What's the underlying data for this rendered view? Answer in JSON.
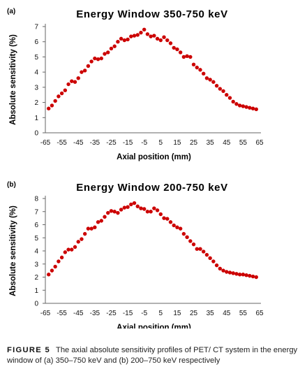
{
  "caption": {
    "label": "FIGURE 5",
    "text": "The axial absolute sensitivity profiles of PET/ CT system in the energy window of (a) 350–750 keV and (b) 200–750 keV respectively"
  },
  "chart_data": [
    {
      "type": "scatter",
      "panel": "(a)",
      "title": "Energy Window 350-750 keV",
      "xlabel": "Axial position (mm)",
      "ylabel": "Absolute sensitivity (%)",
      "xlim": [
        -65,
        65
      ],
      "ylim": [
        0,
        7
      ],
      "xticks": [
        -65,
        -55,
        -45,
        -35,
        -25,
        -15,
        -5,
        5,
        15,
        25,
        35,
        45,
        55,
        65
      ],
      "yticks": [
        0,
        1,
        2,
        3,
        4,
        5,
        6,
        7
      ],
      "grid": false,
      "marker_color": "#cc0000",
      "series": [
        {
          "x": [
            -63,
            -61,
            -59,
            -57,
            -55,
            -53,
            -51,
            -49,
            -47,
            -45,
            -43,
            -41,
            -39,
            -37,
            -35,
            -33,
            -31,
            -29,
            -27,
            -25,
            -23,
            -21,
            -19,
            -17,
            -15,
            -13,
            -11,
            -9,
            -7,
            -5,
            -3,
            -1,
            1,
            3,
            5,
            7,
            9,
            11,
            13,
            15,
            17,
            19,
            21,
            23,
            25,
            27,
            29,
            31,
            33,
            35,
            37,
            39,
            41,
            43,
            45,
            47,
            49,
            51,
            53,
            55,
            57,
            59,
            61,
            63
          ],
          "y": [
            1.6,
            1.8,
            2.1,
            2.4,
            2.6,
            2.8,
            3.2,
            3.4,
            3.35,
            3.6,
            4.0,
            4.1,
            4.4,
            4.7,
            4.9,
            4.85,
            4.9,
            5.2,
            5.3,
            5.55,
            5.7,
            6.0,
            6.2,
            6.1,
            6.15,
            6.35,
            6.4,
            6.45,
            6.6,
            6.8,
            6.5,
            6.35,
            6.4,
            6.2,
            6.1,
            6.3,
            6.1,
            5.9,
            5.6,
            5.5,
            5.3,
            5.0,
            5.05,
            5.0,
            4.5,
            4.3,
            4.15,
            3.9,
            3.6,
            3.5,
            3.35,
            3.1,
            2.9,
            2.75,
            2.5,
            2.3,
            2.05,
            1.9,
            1.8,
            1.75,
            1.7,
            1.65,
            1.6,
            1.55
          ]
        }
      ]
    },
    {
      "type": "scatter",
      "panel": "(b)",
      "title": "Energy Window 200-750 keV",
      "xlabel": "Axial position (mm)",
      "ylabel": "Absolute sensitivity (%)",
      "xlim": [
        -65,
        65
      ],
      "ylim": [
        0,
        8
      ],
      "xticks": [
        -65,
        -55,
        -45,
        -35,
        -25,
        -15,
        -5,
        5,
        15,
        25,
        35,
        45,
        55,
        65
      ],
      "yticks": [
        0,
        1,
        2,
        3,
        4,
        5,
        6,
        7,
        8
      ],
      "grid": false,
      "marker_color": "#cc0000",
      "series": [
        {
          "x": [
            -63,
            -61,
            -59,
            -57,
            -55,
            -53,
            -51,
            -49,
            -47,
            -45,
            -43,
            -41,
            -39,
            -37,
            -35,
            -33,
            -31,
            -29,
            -27,
            -25,
            -23,
            -21,
            -19,
            -17,
            -15,
            -13,
            -11,
            -9,
            -7,
            -5,
            -3,
            -1,
            1,
            3,
            5,
            7,
            9,
            11,
            13,
            15,
            17,
            19,
            21,
            23,
            25,
            27,
            29,
            31,
            33,
            35,
            37,
            39,
            41,
            43,
            45,
            47,
            49,
            51,
            53,
            55,
            57,
            59,
            61,
            63
          ],
          "y": [
            2.2,
            2.5,
            2.8,
            3.2,
            3.5,
            3.9,
            4.1,
            4.1,
            4.3,
            4.7,
            4.9,
            5.3,
            5.7,
            5.7,
            5.8,
            6.2,
            6.3,
            6.6,
            6.9,
            7.05,
            7.0,
            6.9,
            7.15,
            7.3,
            7.35,
            7.55,
            7.65,
            7.4,
            7.25,
            7.2,
            7.0,
            7.0,
            7.25,
            7.1,
            6.8,
            6.5,
            6.45,
            6.2,
            5.95,
            5.8,
            5.7,
            5.3,
            5.05,
            4.75,
            4.5,
            4.15,
            4.15,
            3.95,
            3.7,
            3.45,
            3.2,
            2.9,
            2.65,
            2.5,
            2.4,
            2.35,
            2.3,
            2.25,
            2.2,
            2.2,
            2.15,
            2.1,
            2.05,
            2.0
          ]
        }
      ]
    }
  ]
}
